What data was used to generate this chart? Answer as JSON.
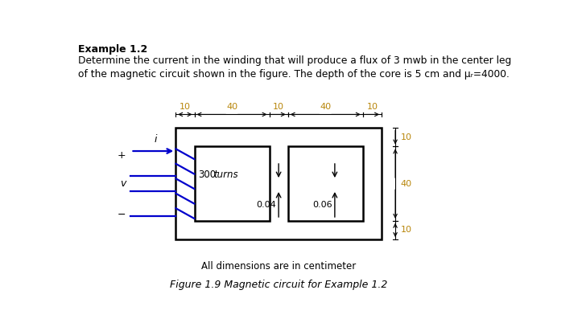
{
  "title_bold": "Example 1.2",
  "title_text": "Determine the current in the winding that will produce a flux of 3 mwb in the center leg\nof the magnetic circuit shown in the figure. The depth of the core is 5 cm and μᵣ=4000.",
  "fig_caption": "Figure 1.9 Magnetic circuit for Example 1.2",
  "sub_caption": "All dimensions are in centimeter",
  "dim_labels_top": [
    "10",
    "40",
    "10",
    "40",
    "10"
  ],
  "dim_labels_right": [
    "10",
    "40",
    "10"
  ],
  "label_004": "0.04",
  "label_006": "0.06",
  "core_color": "black",
  "winding_color": "#0000cc",
  "background": "white",
  "dim_color": "#b8860b",
  "ox": 1.65,
  "oy": 0.95,
  "sc": 0.03,
  "lw_core": 1.8
}
